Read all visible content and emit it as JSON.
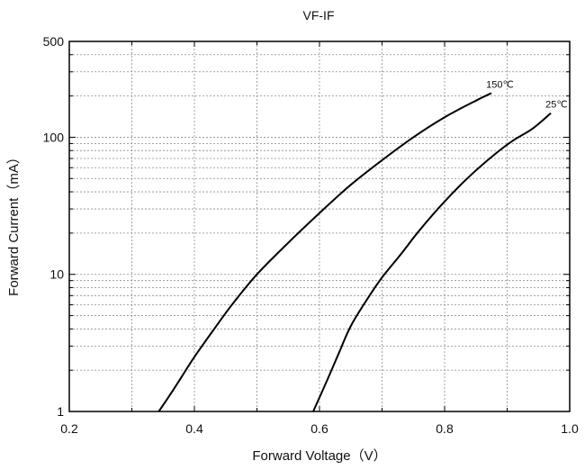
{
  "chart_data": {
    "type": "line",
    "title": "VF-IF",
    "xlabel": "Forward Voltage（V）",
    "ylabel": "Forward Current（mA）",
    "xlim": [
      0.2,
      1.0
    ],
    "ylim": [
      1,
      500
    ],
    "yscale": "log",
    "x_ticks": [
      0.2,
      0.4,
      0.6,
      0.8,
      1.0
    ],
    "x_tick_labels": [
      "0.2",
      "0.4",
      "0.6",
      "0.8",
      "1.0"
    ],
    "y_ticks": [
      1,
      10,
      100,
      500
    ],
    "y_tick_labels": [
      "1",
      "10",
      "100",
      "500"
    ],
    "grid": "dotted",
    "legend": "none",
    "series": [
      {
        "name": "150℃",
        "color": "#000000",
        "points": [
          [
            0.343,
            1
          ],
          [
            0.36,
            1.3
          ],
          [
            0.38,
            1.8
          ],
          [
            0.4,
            2.5
          ],
          [
            0.43,
            3.9
          ],
          [
            0.46,
            6.0
          ],
          [
            0.5,
            10
          ],
          [
            0.55,
            17
          ],
          [
            0.6,
            28
          ],
          [
            0.65,
            45
          ],
          [
            0.7,
            68
          ],
          [
            0.75,
            100
          ],
          [
            0.8,
            140
          ],
          [
            0.85,
            185
          ],
          [
            0.875,
            210
          ]
        ]
      },
      {
        "name": "25℃",
        "color": "#000000",
        "points": [
          [
            0.59,
            1
          ],
          [
            0.61,
            1.6
          ],
          [
            0.63,
            2.6
          ],
          [
            0.65,
            4.2
          ],
          [
            0.68,
            7.0
          ],
          [
            0.7,
            9.5
          ],
          [
            0.73,
            14
          ],
          [
            0.76,
            21
          ],
          [
            0.8,
            34
          ],
          [
            0.84,
            52
          ],
          [
            0.88,
            75
          ],
          [
            0.91,
            95
          ],
          [
            0.94,
            115
          ],
          [
            0.97,
            150
          ]
        ]
      }
    ]
  }
}
